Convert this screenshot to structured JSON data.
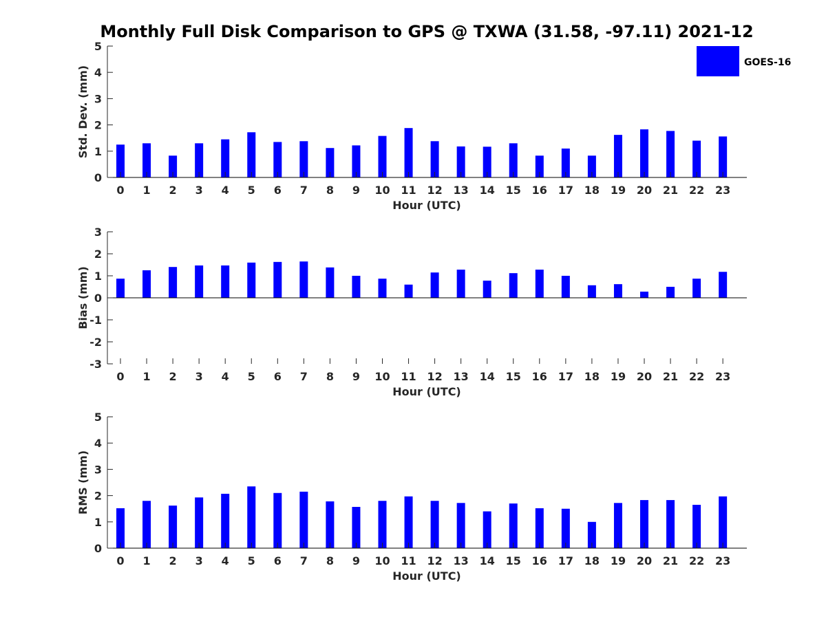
{
  "figure": {
    "title": "Monthly Full Disk Comparison to GPS @ TXWA (31.58, -97.11) 2021-12"
  },
  "chart_data": [
    {
      "type": "bar",
      "id": "stddev",
      "categories": [
        "0",
        "1",
        "2",
        "3",
        "4",
        "5",
        "6",
        "7",
        "8",
        "9",
        "10",
        "11",
        "12",
        "13",
        "14",
        "15",
        "16",
        "17",
        "18",
        "19",
        "20",
        "21",
        "22",
        "23"
      ],
      "series": [
        {
          "name": "GOES-16",
          "color": "#0000ff",
          "values": [
            1.25,
            1.3,
            0.83,
            1.3,
            1.45,
            1.72,
            1.35,
            1.38,
            1.12,
            1.22,
            1.58,
            1.88,
            1.38,
            1.18,
            1.17,
            1.3,
            0.83,
            1.1,
            0.83,
            1.62,
            1.83,
            1.77,
            1.4,
            1.56
          ]
        }
      ],
      "xlabel": "Hour (UTC)",
      "ylabel": "Std. Dev. (mm)",
      "ylim": [
        0,
        5
      ],
      "yticks": [
        0,
        1,
        2,
        3,
        4,
        5
      ],
      "legend": {
        "placement": "top-right",
        "entries": [
          "GOES-16"
        ]
      }
    },
    {
      "type": "bar",
      "id": "bias",
      "categories": [
        "0",
        "1",
        "2",
        "3",
        "4",
        "5",
        "6",
        "7",
        "8",
        "9",
        "10",
        "11",
        "12",
        "13",
        "14",
        "15",
        "16",
        "17",
        "18",
        "19",
        "20",
        "21",
        "22",
        "23"
      ],
      "series": [
        {
          "name": "GOES-16",
          "color": "#0000ff",
          "values": [
            0.87,
            1.25,
            1.4,
            1.47,
            1.47,
            1.6,
            1.63,
            1.65,
            1.38,
            1.0,
            0.87,
            0.6,
            1.15,
            1.28,
            0.78,
            1.12,
            1.28,
            1.0,
            0.57,
            0.62,
            0.28,
            0.5,
            0.87,
            1.18
          ]
        }
      ],
      "xlabel": "Hour (UTC)",
      "ylabel": "Bias (mm)",
      "ylim": [
        -3,
        3
      ],
      "yticks": [
        -3,
        -2,
        -1,
        0,
        1,
        2,
        3
      ]
    },
    {
      "type": "bar",
      "id": "rms",
      "categories": [
        "0",
        "1",
        "2",
        "3",
        "4",
        "5",
        "6",
        "7",
        "8",
        "9",
        "10",
        "11",
        "12",
        "13",
        "14",
        "15",
        "16",
        "17",
        "18",
        "19",
        "20",
        "21",
        "22",
        "23"
      ],
      "series": [
        {
          "name": "GOES-16",
          "color": "#0000ff",
          "values": [
            1.52,
            1.8,
            1.62,
            1.93,
            2.07,
            2.35,
            2.1,
            2.15,
            1.78,
            1.57,
            1.8,
            1.97,
            1.8,
            1.72,
            1.4,
            1.7,
            1.52,
            1.5,
            1.0,
            1.72,
            1.83,
            1.83,
            1.65,
            1.97
          ]
        }
      ],
      "xlabel": "Hour (UTC)",
      "ylabel": "RMS (mm)",
      "ylim": [
        0,
        5
      ],
      "yticks": [
        0,
        1,
        2,
        3,
        4,
        5
      ]
    }
  ]
}
